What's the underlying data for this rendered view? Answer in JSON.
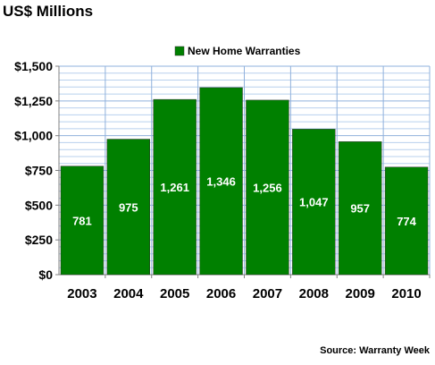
{
  "chart_data": {
    "type": "bar",
    "title": "US$ Millions",
    "source": "Source: Warranty Week",
    "xlabel": "",
    "ylabel": "",
    "categories": [
      "2003",
      "2004",
      "2005",
      "2006",
      "2007",
      "2008",
      "2009",
      "2010"
    ],
    "series": [
      {
        "name": "New Home Warranties",
        "values": [
          781,
          975,
          1261,
          1346,
          1256,
          1047,
          957,
          774
        ],
        "labels": [
          "781",
          "975",
          "1,261",
          "1,346",
          "1,256",
          "1,047",
          "957",
          "774"
        ],
        "color": "#008000"
      }
    ],
    "ylim": [
      0,
      1500
    ],
    "yticks": [
      0,
      250,
      500,
      750,
      1000,
      1250,
      1500
    ],
    "ytick_labels": [
      "$0",
      "$250",
      "$500",
      "$750",
      "$1,000",
      "$1,250",
      "$1,500"
    ],
    "minor_grid_step": 50,
    "grid": true,
    "legend_position": "top-center"
  },
  "colors": {
    "bar": "#008000",
    "bar_stroke": "#333333",
    "grid_minor": "#b8d0ee",
    "grid_major": "#8fb0dc",
    "axis": "#808080",
    "data_label": "#ffffff",
    "text": "#000000"
  }
}
